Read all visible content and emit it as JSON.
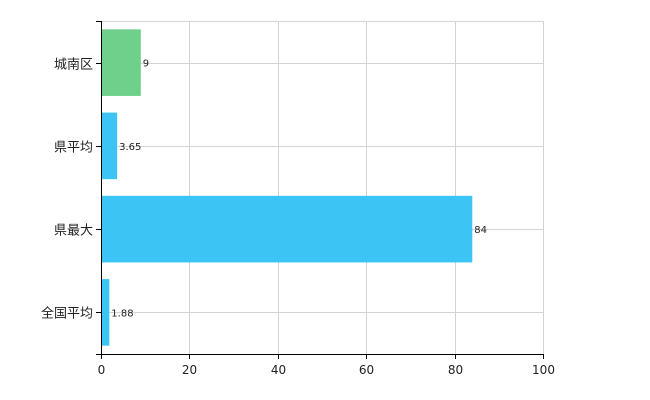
{
  "chart_data": {
    "type": "bar",
    "orientation": "horizontal",
    "categories": [
      "城南区",
      "県平均",
      "県最大",
      "全国平均"
    ],
    "values": [
      9,
      3.65,
      84,
      1.88
    ],
    "value_labels": [
      "9",
      "3.65",
      "84",
      "1.88"
    ],
    "bar_colors": [
      "#6fd08c",
      "#3cc4f4",
      "#3cc4f4",
      "#3cc4f4"
    ],
    "title": "",
    "xlabel": "",
    "ylabel": "",
    "xlim": [
      0,
      100
    ],
    "xticks": [
      0,
      20,
      40,
      60,
      80,
      100
    ],
    "xtick_labels": [
      "0",
      "20",
      "40",
      "60",
      "80",
      "100"
    ],
    "grid": true,
    "legend": "none"
  },
  "colors": {
    "axis": "#000000",
    "grid": "#d3d3d3",
    "highlight_bar": "#6fd08c",
    "bar": "#3cc4f4"
  }
}
